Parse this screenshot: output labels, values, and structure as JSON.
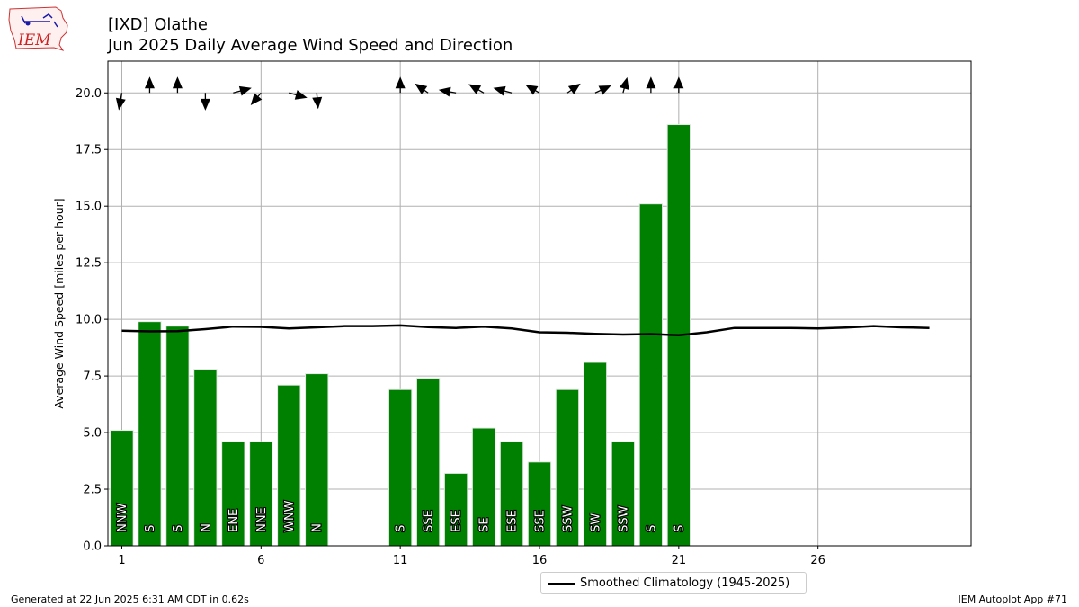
{
  "logo": {
    "text": "IEM",
    "icon": "iowa-state-map-weather-icon"
  },
  "title": {
    "line1": "[IXD] Olathe",
    "line2": "Jun 2025 Daily Average Wind Speed and Direction"
  },
  "footer": {
    "left": "Generated at 22 Jun 2025 6:31 AM CDT in 0.62s",
    "right": "IEM Autoplot App #71"
  },
  "colors": {
    "bar": "#008000",
    "bar_edge": "#e8e8e8",
    "climatology": "#000000",
    "grid": "#b0b0b0"
  },
  "chart_data": {
    "type": "bar",
    "xlabel": "",
    "ylabel": "Average Wind Speed [miles per hour]",
    "xlim": [
      0.5,
      31.5
    ],
    "ylim": [
      0,
      21.4
    ],
    "xticks": [
      1,
      6,
      11,
      16,
      21,
      26
    ],
    "xtick_labels": [
      "1",
      "6",
      "11",
      "16",
      "21",
      "26"
    ],
    "yticks": [
      0,
      2.5,
      5,
      7.5,
      10,
      12.5,
      15,
      17.5,
      20
    ],
    "ytick_labels": [
      "0.0",
      "2.5",
      "5.0",
      "7.5",
      "10.0",
      "12.5",
      "15.0",
      "17.5",
      "20.0"
    ],
    "grid": true,
    "legend_position": "below",
    "days": [
      1,
      2,
      3,
      4,
      5,
      6,
      7,
      8,
      11,
      12,
      13,
      14,
      15,
      16,
      17,
      18,
      19,
      20,
      21
    ],
    "values": [
      5.1,
      9.9,
      9.7,
      7.8,
      4.6,
      4.6,
      7.1,
      7.6,
      6.9,
      7.4,
      3.2,
      5.2,
      4.6,
      3.7,
      6.9,
      8.1,
      4.6,
      15.1,
      18.6
    ],
    "direction_labels": [
      "NNW",
      "S",
      "S",
      "N",
      "ENE",
      "NNE",
      "WNW",
      "N",
      "S",
      "SSE",
      "ESE",
      "SE",
      "ESE",
      "SSE",
      "SSW",
      "SW",
      "SSW",
      "S",
      "S"
    ],
    "arrows_y": 20,
    "arrow_angles_deg": [
      -100,
      90,
      90,
      -90,
      15,
      -130,
      -15,
      -85,
      90,
      145,
      170,
      150,
      165,
      150,
      35,
      25,
      75,
      90,
      90
    ],
    "arrow_lengths": [
      0.55,
      0.5,
      0.5,
      0.55,
      0.6,
      0.5,
      0.6,
      0.5,
      0.5,
      0.5,
      0.55,
      0.55,
      0.6,
      0.5,
      0.5,
      0.55,
      0.5,
      0.5,
      0.5
    ],
    "series": [
      {
        "name": "Smoothed Climatology (1945-2025)",
        "type": "line",
        "x": [
          1,
          2,
          3,
          4,
          5,
          6,
          7,
          8,
          9,
          10,
          11,
          12,
          13,
          14,
          15,
          16,
          17,
          18,
          19,
          20,
          21,
          22,
          23,
          24,
          25,
          26,
          27,
          28,
          29,
          30
        ],
        "values": [
          9.5,
          9.47,
          9.48,
          9.57,
          9.68,
          9.67,
          9.6,
          9.65,
          9.7,
          9.7,
          9.73,
          9.66,
          9.62,
          9.68,
          9.6,
          9.43,
          9.41,
          9.36,
          9.33,
          9.35,
          9.3,
          9.43,
          9.62,
          9.62,
          9.62,
          9.6,
          9.64,
          9.7,
          9.65,
          9.62
        ]
      }
    ]
  }
}
